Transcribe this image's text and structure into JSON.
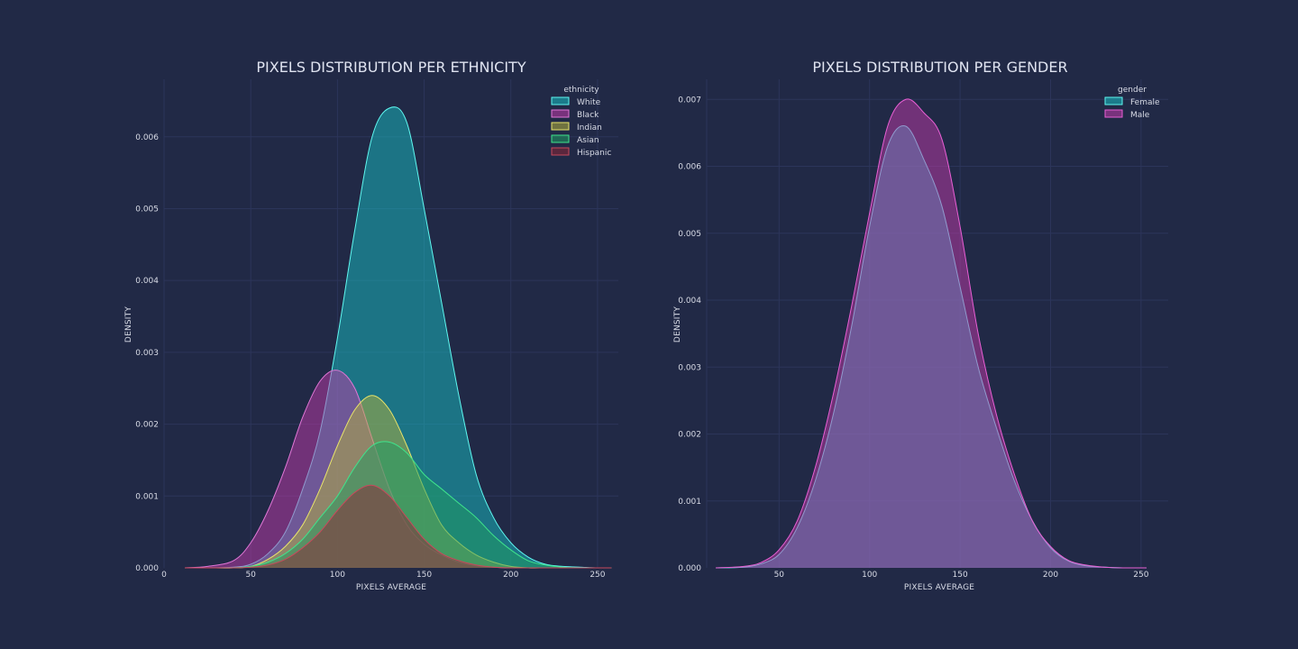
{
  "chart_data": [
    {
      "type": "area",
      "title": "PIXELS DISTRIBUTION PER ETHNICITY",
      "xlabel": "PIXELS AVERAGE",
      "ylabel": "DENSITY",
      "xlim": [
        0,
        262
      ],
      "ylim": [
        0,
        0.0068
      ],
      "xticks": [
        0,
        50,
        100,
        150,
        200,
        250
      ],
      "yticks": [
        0.0,
        0.001,
        0.002,
        0.003,
        0.004,
        0.005,
        0.006
      ],
      "ytick_labels": [
        "0.000",
        "0.001",
        "0.002",
        "0.003",
        "0.004",
        "0.005",
        "0.006"
      ],
      "grid": true,
      "legend": {
        "title": "ethnicity",
        "position": "top-right"
      },
      "x": [
        12,
        25,
        40,
        50,
        60,
        70,
        80,
        90,
        100,
        110,
        120,
        130,
        140,
        150,
        160,
        170,
        180,
        190,
        200,
        210,
        220,
        230,
        240,
        250,
        258
      ],
      "series": [
        {
          "name": "White",
          "color": "#18c0c4",
          "values": [
            0,
            0,
            1e-05,
            5e-05,
            0.0002,
            0.0005,
            0.0011,
            0.0019,
            0.0032,
            0.0047,
            0.006,
            0.0064,
            0.0062,
            0.005,
            0.0037,
            0.0024,
            0.0013,
            0.0007,
            0.00035,
            0.00015,
            5e-05,
            2e-05,
            1e-05,
            0,
            0
          ]
        },
        {
          "name": "Black",
          "color": "#c13baa",
          "values": [
            0,
            2e-05,
            0.0001,
            0.00035,
            0.0008,
            0.0014,
            0.0021,
            0.0026,
            0.00275,
            0.0025,
            0.0018,
            0.0011,
            0.0006,
            0.00033,
            0.00018,
            8e-05,
            3e-05,
            1e-05,
            0,
            0,
            0,
            0,
            0,
            0,
            0
          ]
        },
        {
          "name": "Indian",
          "color": "#b4b13c",
          "values": [
            0,
            0,
            0,
            2e-05,
            0.00012,
            0.0003,
            0.0006,
            0.0011,
            0.0017,
            0.0022,
            0.0024,
            0.0022,
            0.0017,
            0.0011,
            0.0006,
            0.00035,
            0.00018,
            8e-05,
            2e-05,
            0,
            0,
            0,
            0,
            0,
            0
          ]
        },
        {
          "name": "Asian",
          "color": "#1f9d61",
          "values": [
            0,
            0,
            0,
            2e-05,
            8e-05,
            0.0002,
            0.0004,
            0.0007,
            0.001,
            0.0014,
            0.0017,
            0.00175,
            0.0016,
            0.0013,
            0.0011,
            0.0009,
            0.0007,
            0.00045,
            0.00025,
            0.0001,
            4e-05,
            1e-05,
            0,
            0,
            0
          ]
        },
        {
          "name": "Hispanic",
          "color": "#8a2737",
          "values": [
            0,
            0,
            0,
            1e-05,
            4e-05,
            0.00012,
            0.00028,
            0.0005,
            0.0008,
            0.00105,
            0.00115,
            0.001,
            0.0007,
            0.0004,
            0.0002,
            0.0001,
            4e-05,
            1e-05,
            0,
            0,
            0,
            0,
            0,
            0,
            0
          ]
        }
      ]
    },
    {
      "type": "area",
      "title": "PIXELS DISTRIBUTION PER GENDER",
      "xlabel": "PIXELS AVERAGE",
      "ylabel": "DENSITY",
      "xlim": [
        10,
        265
      ],
      "ylim": [
        0,
        0.0073
      ],
      "xticks": [
        50,
        100,
        150,
        200,
        250
      ],
      "yticks": [
        0.0,
        0.001,
        0.002,
        0.003,
        0.004,
        0.005,
        0.006,
        0.007
      ],
      "ytick_labels": [
        "0.000",
        "0.001",
        "0.002",
        "0.003",
        "0.004",
        "0.005",
        "0.006",
        "0.007"
      ],
      "grid": true,
      "legend": {
        "title": "gender",
        "position": "top-right"
      },
      "x": [
        15,
        30,
        40,
        50,
        60,
        70,
        80,
        90,
        100,
        110,
        120,
        130,
        140,
        150,
        160,
        170,
        180,
        190,
        200,
        210,
        220,
        230,
        240,
        253
      ],
      "series": [
        {
          "name": "Female",
          "color": "#18c0c4",
          "values": [
            0,
            1e-05,
            6e-05,
            0.0002,
            0.0006,
            0.0013,
            0.0023,
            0.0036,
            0.0051,
            0.0063,
            0.0066,
            0.0061,
            0.0054,
            0.0042,
            0.003,
            0.0021,
            0.0013,
            0.0007,
            0.0003,
            0.0001,
            3e-05,
            1e-05,
            0,
            0
          ]
        },
        {
          "name": "Male",
          "color": "#c13baa",
          "values": [
            0,
            2e-05,
            8e-05,
            0.00027,
            0.0007,
            0.0015,
            0.0026,
            0.0039,
            0.0053,
            0.0066,
            0.007,
            0.0068,
            0.0064,
            0.0051,
            0.0035,
            0.0023,
            0.0014,
            0.0007,
            0.00032,
            0.00011,
            4e-05,
            1e-05,
            0,
            0
          ]
        }
      ]
    }
  ]
}
